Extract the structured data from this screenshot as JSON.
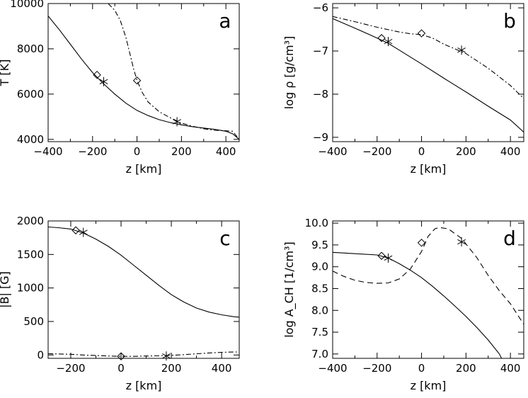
{
  "chart_data": [
    {
      "type": "line",
      "panel_label": "a",
      "xlabel": "z [km]",
      "ylabel": "T [K]",
      "xlim": [
        -400,
        460
      ],
      "ylim": [
        3900,
        10000
      ],
      "xticks": [
        -400,
        -200,
        0,
        200,
        400
      ],
      "yticks": [
        4000,
        6000,
        8000,
        10000
      ],
      "series": [
        {
          "style": "solid",
          "points": [
            [
              -400,
              9450
            ],
            [
              -350,
              8850
            ],
            [
              -300,
              8200
            ],
            [
              -250,
              7550
            ],
            [
              -200,
              6950
            ],
            [
              -150,
              6450
            ],
            [
              -100,
              6000
            ],
            [
              -50,
              5600
            ],
            [
              0,
              5280
            ],
            [
              50,
              5050
            ],
            [
              100,
              4870
            ],
            [
              150,
              4740
            ],
            [
              200,
              4640
            ],
            [
              250,
              4560
            ],
            [
              300,
              4500
            ],
            [
              350,
              4440
            ],
            [
              400,
              4360
            ],
            [
              430,
              4250
            ],
            [
              460,
              4000
            ]
          ]
        },
        {
          "style": "dashdot",
          "points": [
            [
              -130,
              10000
            ],
            [
              -100,
              9700
            ],
            [
              -75,
              9250
            ],
            [
              -50,
              8500
            ],
            [
              -30,
              7700
            ],
            [
              -15,
              7100
            ],
            [
              0,
              6600
            ],
            [
              25,
              6050
            ],
            [
              50,
              5650
            ],
            [
              100,
              5220
            ],
            [
              150,
              4950
            ],
            [
              200,
              4720
            ],
            [
              250,
              4580
            ],
            [
              300,
              4470
            ],
            [
              350,
              4400
            ],
            [
              400,
              4380
            ],
            [
              430,
              4360
            ],
            [
              460,
              4000
            ]
          ]
        }
      ],
      "markers": [
        {
          "symbol": "diamond",
          "x": -180,
          "y": 6850
        },
        {
          "symbol": "asterisk",
          "x": -150,
          "y": 6550
        },
        {
          "symbol": "diamond",
          "x": 0,
          "y": 6600
        },
        {
          "symbol": "asterisk",
          "x": 180,
          "y": 4780
        }
      ]
    },
    {
      "type": "line",
      "panel_label": "b",
      "xlabel": "z [km]",
      "ylabel": "log ρ [g/cm³]",
      "xlim": [
        -400,
        460
      ],
      "ylim": [
        -9.1,
        -5.9
      ],
      "xticks": [
        -400,
        -200,
        0,
        200,
        400
      ],
      "yticks": [
        -9,
        -8,
        -7,
        -6
      ],
      "series": [
        {
          "style": "solid",
          "points": [
            [
              -400,
              -6.25
            ],
            [
              -300,
              -6.47
            ],
            [
              -200,
              -6.7
            ],
            [
              -150,
              -6.82
            ],
            [
              -100,
              -6.98
            ],
            [
              0,
              -7.3
            ],
            [
              100,
              -7.63
            ],
            [
              200,
              -7.95
            ],
            [
              300,
              -8.28
            ],
            [
              400,
              -8.6
            ],
            [
              460,
              -8.88
            ]
          ]
        },
        {
          "style": "dashdot",
          "points": [
            [
              -400,
              -6.2
            ],
            [
              -300,
              -6.32
            ],
            [
              -200,
              -6.45
            ],
            [
              -100,
              -6.56
            ],
            [
              -50,
              -6.6
            ],
            [
              0,
              -6.62
            ],
            [
              50,
              -6.7
            ],
            [
              100,
              -6.84
            ],
            [
              150,
              -6.95
            ],
            [
              200,
              -7.06
            ],
            [
              300,
              -7.4
            ],
            [
              400,
              -7.8
            ],
            [
              460,
              -8.1
            ]
          ]
        }
      ],
      "markers": [
        {
          "symbol": "diamond",
          "x": -180,
          "y": -6.7
        },
        {
          "symbol": "asterisk",
          "x": -150,
          "y": -6.78
        },
        {
          "symbol": "diamond",
          "x": 0,
          "y": -6.59
        },
        {
          "symbol": "asterisk",
          "x": 180,
          "y": -6.98
        }
      ]
    },
    {
      "type": "line",
      "panel_label": "c",
      "xlabel": "z [km]",
      "ylabel": "|B| [G]",
      "xlim": [
        -290,
        470
      ],
      "ylim": [
        -50,
        2000
      ],
      "xticks": [
        -200,
        0,
        200,
        400
      ],
      "yticks": [
        0,
        500,
        1000,
        1500,
        2000
      ],
      "series": [
        {
          "style": "solid",
          "points": [
            [
              -290,
              1910
            ],
            [
              -250,
              1900
            ],
            [
              -200,
              1880
            ],
            [
              -150,
              1820
            ],
            [
              -100,
              1730
            ],
            [
              -50,
              1620
            ],
            [
              0,
              1490
            ],
            [
              50,
              1340
            ],
            [
              100,
              1190
            ],
            [
              150,
              1040
            ],
            [
              200,
              900
            ],
            [
              250,
              790
            ],
            [
              300,
              700
            ],
            [
              350,
              640
            ],
            [
              400,
              600
            ],
            [
              450,
              570
            ],
            [
              470,
              565
            ]
          ]
        },
        {
          "style": "dashdot",
          "points": [
            [
              -290,
              20
            ],
            [
              -200,
              10
            ],
            [
              -150,
              0
            ],
            [
              -100,
              -8
            ],
            [
              -50,
              -15
            ],
            [
              0,
              -20
            ],
            [
              50,
              -20
            ],
            [
              100,
              -15
            ],
            [
              150,
              -12
            ],
            [
              200,
              -5
            ],
            [
              250,
              5
            ],
            [
              300,
              18
            ],
            [
              350,
              30
            ],
            [
              400,
              40
            ],
            [
              450,
              45
            ],
            [
              470,
              45
            ]
          ]
        }
      ],
      "markers": [
        {
          "symbol": "diamond",
          "x": -180,
          "y": 1860
        },
        {
          "symbol": "asterisk",
          "x": -150,
          "y": 1830
        },
        {
          "symbol": "diamond",
          "x": 0,
          "y": -20
        },
        {
          "symbol": "asterisk",
          "x": 180,
          "y": -15
        }
      ]
    },
    {
      "type": "line",
      "panel_label": "d",
      "xlabel": "z [km]",
      "ylabel": "log A_CH [1/cm³]",
      "xlim": [
        -400,
        460
      ],
      "ylim": [
        6.9,
        10.05
      ],
      "xticks": [
        -400,
        -200,
        0,
        200,
        400
      ],
      "yticks": [
        7.0,
        7.5,
        8.0,
        8.5,
        9.0,
        9.5,
        10.0
      ],
      "ytick_labels": [
        "7.0",
        "7.5",
        "8.0",
        "8.5",
        "9.0",
        "9.5",
        "10.0"
      ],
      "series": [
        {
          "style": "solid",
          "points": [
            [
              -400,
              9.33
            ],
            [
              -300,
              9.3
            ],
            [
              -200,
              9.27
            ],
            [
              -150,
              9.2
            ],
            [
              -100,
              9.07
            ],
            [
              -50,
              8.92
            ],
            [
              0,
              8.75
            ],
            [
              50,
              8.55
            ],
            [
              100,
              8.33
            ],
            [
              150,
              8.1
            ],
            [
              200,
              7.86
            ],
            [
              250,
              7.6
            ],
            [
              300,
              7.32
            ],
            [
              350,
              7.0
            ],
            [
              360,
              6.9
            ]
          ]
        },
        {
          "style": "dashed",
          "points": [
            [
              -400,
              8.9
            ],
            [
              -350,
              8.78
            ],
            [
              -300,
              8.69
            ],
            [
              -250,
              8.64
            ],
            [
              -200,
              8.62
            ],
            [
              -150,
              8.63
            ],
            [
              -100,
              8.72
            ],
            [
              -50,
              8.95
            ],
            [
              0,
              9.35
            ],
            [
              30,
              9.7
            ],
            [
              60,
              9.87
            ],
            [
              80,
              9.9
            ],
            [
              120,
              9.87
            ],
            [
              180,
              9.65
            ],
            [
              250,
              9.2
            ],
            [
              300,
              8.8
            ],
            [
              350,
              8.45
            ],
            [
              400,
              8.15
            ],
            [
              460,
              7.68
            ]
          ]
        }
      ],
      "markers": [
        {
          "symbol": "diamond",
          "x": -180,
          "y": 9.25
        },
        {
          "symbol": "asterisk",
          "x": -150,
          "y": 9.2
        },
        {
          "symbol": "diamond",
          "x": 0,
          "y": 9.55
        },
        {
          "symbol": "asterisk",
          "x": 180,
          "y": 9.57
        }
      ]
    }
  ]
}
